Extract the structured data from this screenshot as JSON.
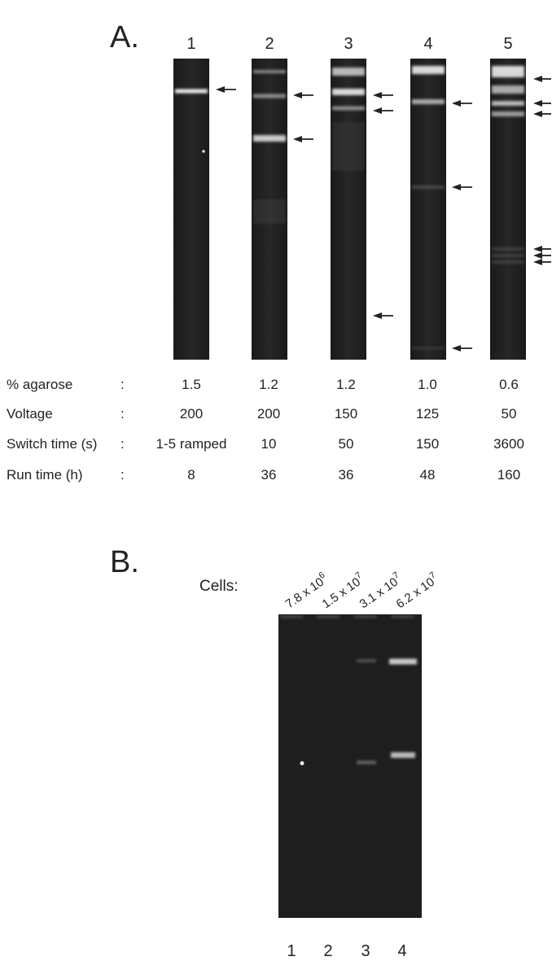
{
  "panel_a": {
    "label": "A.",
    "lanes": [
      "1",
      "2",
      "3",
      "4",
      "5"
    ],
    "table": {
      "rows": [
        {
          "name": "% agarose",
          "sep": ":",
          "cells": [
            "1.5",
            "1.2",
            "1.2",
            "1.0",
            "0.6"
          ]
        },
        {
          "name": "Voltage",
          "sep": ":",
          "cells": [
            "200",
            "200",
            "150",
            "125",
            "50"
          ]
        },
        {
          "name": "Switch time (s)",
          "sep": ":",
          "cells": [
            "1-5 ramped",
            "10",
            "50",
            "150",
            "3600"
          ]
        },
        {
          "name": "Run time (h)",
          "sep": ":",
          "cells": [
            "8",
            "36",
            "36",
            "48",
            "160"
          ]
        }
      ]
    }
  },
  "panel_b": {
    "label": "B.",
    "cells_label": "Cells:",
    "cell_counts": [
      {
        "mantissa": "7.8 x 10",
        "exponent": "6"
      },
      {
        "mantissa": "1.5 x 10",
        "exponent": "7"
      },
      {
        "mantissa": "3.1 x 10",
        "exponent": "7"
      },
      {
        "mantissa": "6.2 x 10",
        "exponent": "7"
      }
    ],
    "lanes": [
      "1",
      "2",
      "3",
      "4"
    ]
  }
}
